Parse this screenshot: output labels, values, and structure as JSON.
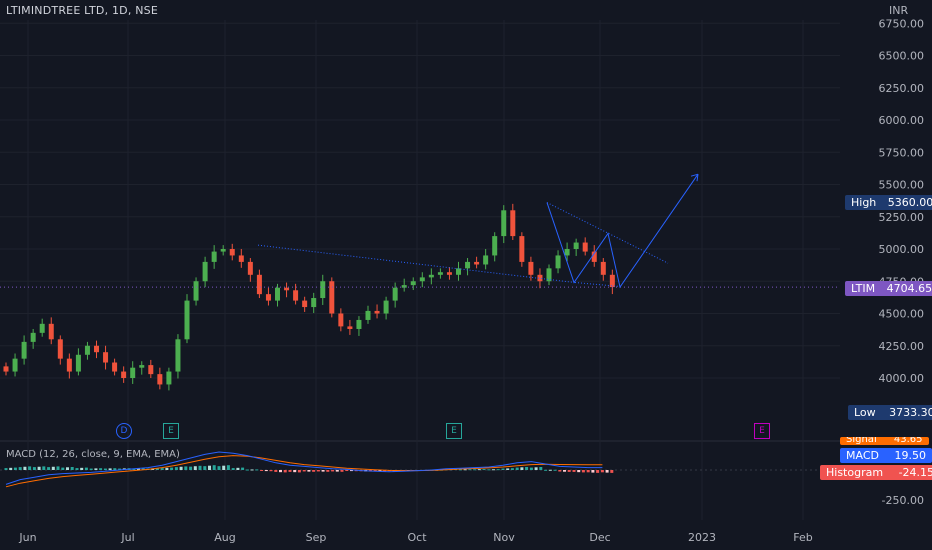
{
  "header": {
    "symbol_title": "LTIMINDTREE LTD, 1D, NSE",
    "currency": "INR"
  },
  "price_axis": {
    "ticks": [
      "6750.00",
      "6500.00",
      "6250.00",
      "6000.00",
      "5750.00",
      "5500.00",
      "5250.00",
      "5000.00",
      "4750.00",
      "4500.00",
      "4250.00",
      "4000.00"
    ],
    "tick_values": [
      6750,
      6500,
      6250,
      6000,
      5750,
      5500,
      5250,
      5000,
      4750,
      4500,
      4250,
      4000
    ]
  },
  "macd_axis": {
    "ticks": [
      "-250.00"
    ],
    "tick_values": [
      -250
    ]
  },
  "time_axis": {
    "labels": [
      "Jun",
      "Jul",
      "Aug",
      "Sep",
      "Oct",
      "Nov",
      "Dec",
      "2023",
      "Feb"
    ]
  },
  "tags": {
    "high_label": "High",
    "high_value": "5360.00",
    "last_symbol": "LTIM",
    "last_value": "4704.65",
    "low_label": "Low",
    "low_value": "3733.30",
    "signal_label": "Signal",
    "signal_value": "43.65",
    "macd_label": "MACD",
    "macd_value": "19.50",
    "hist_label": "Histogram",
    "hist_value": "-24.15"
  },
  "indicator": {
    "macd_title": "MACD (12, 26, close, 9, EMA, EMA)"
  },
  "events": [
    "D",
    "E",
    "E",
    "E"
  ],
  "colors": {
    "up": "#26a69a",
    "down": "#ef5350",
    "candle_up": "#4caf50",
    "candle_down": "#f0533c",
    "drawing": "#2962ff",
    "macd": "#2962ff",
    "signal": "#ff6d00",
    "last_tag": "#7e57c2",
    "high_low_tag": "#1e3a6e"
  },
  "chart_data": {
    "type": "candlestick",
    "x_labels": [
      "Jun",
      "Jul",
      "Aug",
      "Sep",
      "Oct",
      "Nov",
      "Dec",
      "2023",
      "Feb"
    ],
    "price_ylim": [
      3750,
      6800
    ],
    "high": 5360.0,
    "low": 3733.3,
    "last": 4704.65,
    "close_path": [
      4050,
      4150,
      4280,
      4350,
      4420,
      4300,
      4150,
      4050,
      4180,
      4250,
      4200,
      4120,
      4050,
      4000,
      4080,
      4100,
      4030,
      3950,
      4050,
      4300,
      4600,
      4750,
      4900,
      4980,
      5000,
      4950,
      4900,
      4800,
      4650,
      4600,
      4700,
      4680,
      4600,
      4550,
      4620,
      4750,
      4500,
      4400,
      4380,
      4450,
      4520,
      4500,
      4600,
      4700,
      4720,
      4750,
      4780,
      4800,
      4820,
      4800,
      4850,
      4900,
      4880,
      4950,
      5100,
      5300,
      5100,
      4900,
      4800,
      4750,
      4850,
      4950,
      5000,
      5050,
      4980,
      4900,
      4800,
      4704.65
    ],
    "macd_ylim": [
      -300,
      200
    ],
    "macd_path": [
      -120,
      -80,
      -60,
      -40,
      -30,
      -25,
      -20,
      -10,
      0,
      10,
      20,
      40,
      70,
      100,
      130,
      150,
      140,
      120,
      90,
      60,
      40,
      30,
      20,
      10,
      5,
      -5,
      -10,
      -15,
      -10,
      -5,
      0,
      10,
      15,
      20,
      25,
      40,
      60,
      70,
      50,
      30,
      25,
      20,
      19.5
    ],
    "signal_path": [
      -140,
      -110,
      -90,
      -70,
      -55,
      -45,
      -35,
      -25,
      -15,
      -5,
      5,
      20,
      40,
      65,
      90,
      110,
      120,
      115,
      100,
      80,
      60,
      45,
      35,
      25,
      15,
      8,
      2,
      -3,
      -5,
      -5,
      -3,
      2,
      8,
      12,
      18,
      25,
      35,
      45,
      48,
      46,
      45,
      44,
      43.65
    ],
    "hist_path": [
      20,
      30,
      30,
      30,
      25,
      20,
      15,
      15,
      15,
      15,
      15,
      20,
      30,
      35,
      40,
      40,
      20,
      5,
      -10,
      -20,
      -20,
      -15,
      -15,
      -15,
      -10,
      -13,
      -12,
      -12,
      -5,
      0,
      3,
      8,
      7,
      8,
      7,
      15,
      25,
      25,
      2,
      -16,
      -20,
      -24,
      -24.15
    ]
  }
}
